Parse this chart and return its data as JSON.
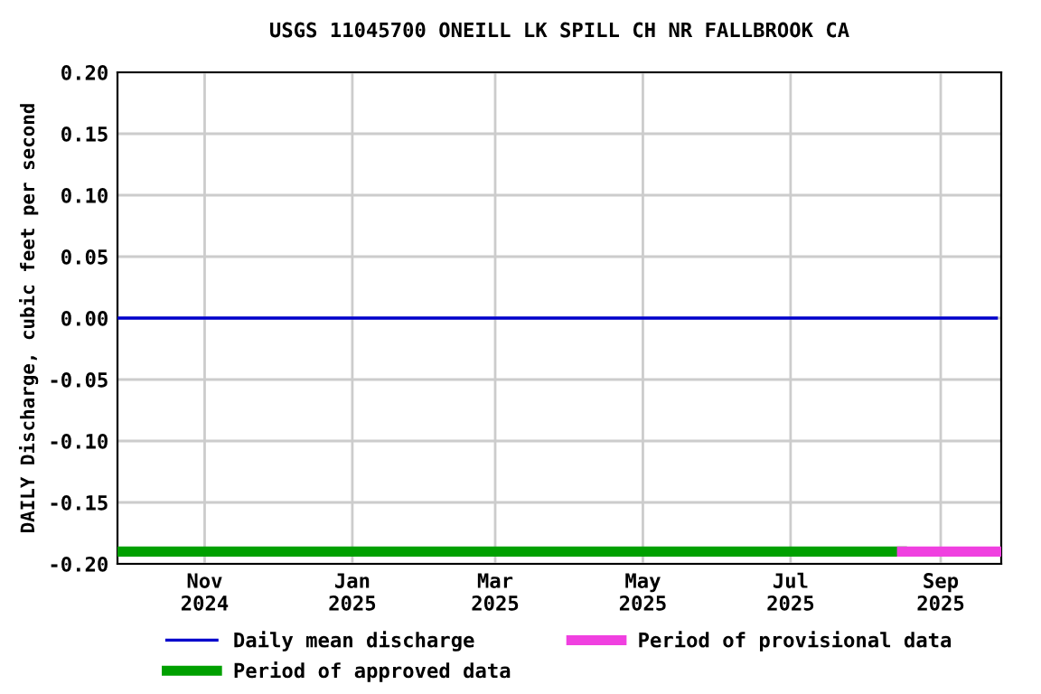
{
  "chart_data": {
    "type": "line",
    "title": "USGS 11045700 ONEILL LK SPILL CH NR FALLBROOK CA",
    "ylabel": "DAILY Discharge, cubic feet per second",
    "series": [
      {
        "name": "Daily mean discharge",
        "color": "#0000cc",
        "x": [
          "2024-10-10",
          "2025-10-08"
        ],
        "values": [
          0,
          0
        ]
      },
      {
        "name": "Period of approved data",
        "color": "#00a000",
        "x": [
          "2024-10-10",
          "2025-08-30"
        ],
        "values": [
          -0.19,
          -0.19
        ]
      },
      {
        "name": "Period of provisional data",
        "color": "#f040e0",
        "x": [
          "2025-08-30",
          "2025-10-08"
        ],
        "values": [
          -0.19,
          -0.19
        ]
      }
    ],
    "xlim": [
      "2024-10-10",
      "2025-10-10"
    ],
    "xticks": [
      {
        "value": "2024-11-15",
        "label": "Nov\n2024"
      },
      {
        "value": "2025-01-15",
        "label": "Jan\n2025"
      },
      {
        "value": "2025-03-15",
        "label": "Mar\n2025"
      },
      {
        "value": "2025-05-15",
        "label": "May\n2025"
      },
      {
        "value": "2025-07-15",
        "label": "Jul\n2025"
      },
      {
        "value": "2025-09-15",
        "label": "Sep\n2025"
      }
    ],
    "ylim": [
      -0.2,
      0.2
    ],
    "yticks": [
      {
        "value": -0.2,
        "label": "-0.20"
      },
      {
        "value": -0.15,
        "label": "-0.15"
      },
      {
        "value": -0.1,
        "label": "-0.10"
      },
      {
        "value": -0.05,
        "label": "-0.05"
      },
      {
        "value": 0,
        "label": "0.00"
      },
      {
        "value": 0.05,
        "label": "0.05"
      },
      {
        "value": 0.1,
        "label": "0.10"
      },
      {
        "value": 0.15,
        "label": "0.15"
      },
      {
        "value": 0.2,
        "label": "0.20"
      }
    ],
    "grid": true,
    "legend": "bottom",
    "marker": "none",
    "line_style": "solid"
  }
}
